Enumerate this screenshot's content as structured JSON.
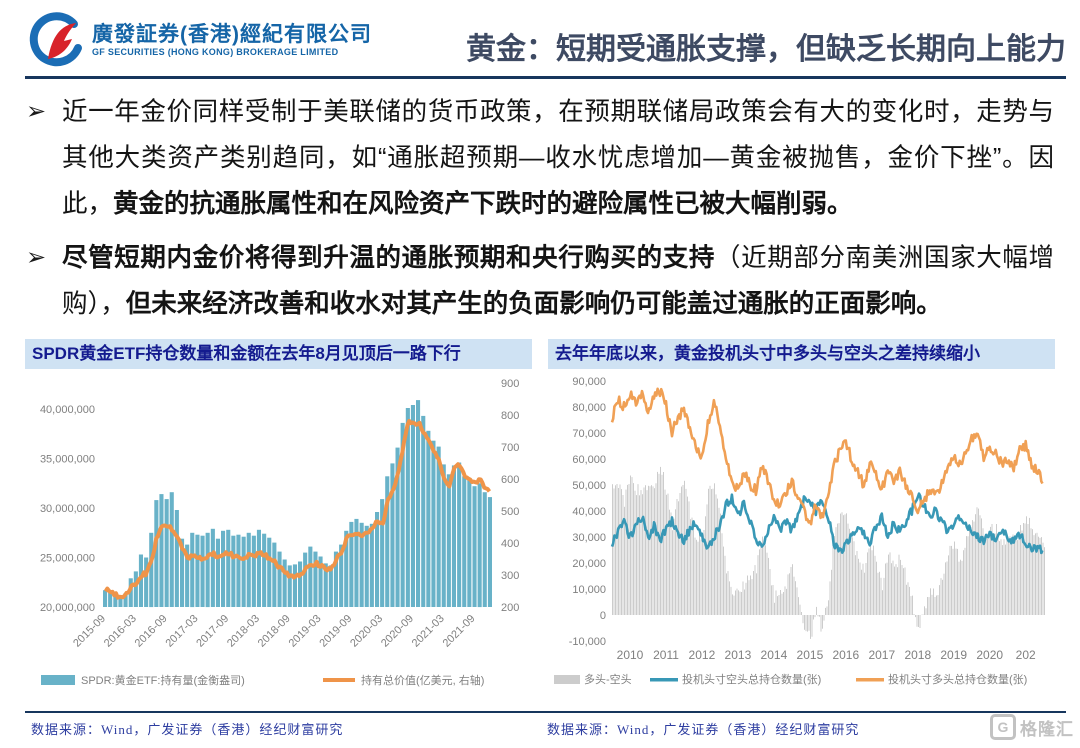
{
  "header": {
    "logo_chinese": "廣發証券(香港)經紀有限公司",
    "logo_english": "GF SECURITIES (HONG KONG) BROKERAGE LIMITED",
    "title": "黄金：短期受通胀支撑，但缺乏长期向上能力"
  },
  "bullet_marker": "➢",
  "bullets": [
    {
      "segments": [
        {
          "text": "近一年金价同样受制于美联储的货币政策，在预期联储局政策会有大的变化时，走势与其他大类资产类别趋同，如“通胀超预期—收水忧虑增加—黄金被抛售，金价下挫”。因此，",
          "bold": false
        },
        {
          "text": "黄金的抗通胀属性和在风险资产下跌时的避险属性已被大幅削弱。",
          "bold": true
        }
      ]
    },
    {
      "segments": [
        {
          "text": "尽管短期内金价将得到升温的通胀预期和央行购买的支持",
          "bold": true
        },
        {
          "text": "（近期部分南美洲国家大幅增购），",
          "bold": false
        },
        {
          "text": "但未来经济改善和收水对其产生的负面影响仍可能盖过通胀的正面影响。",
          "bold": true
        }
      ]
    }
  ],
  "footer": {
    "source_left": "数据来源：Wind，广发证券（香港）经纪财富研究",
    "source_right": "数据来源：Wind，广发证券（香港）经纪财富研究",
    "watermark": "格隆汇",
    "watermark_icon": "G"
  },
  "colors": {
    "accent_navy": "#17365d",
    "title_text": "#3e4a63",
    "chart_header_bg": "#cfe2f3",
    "chart_header_text": "#141b8f",
    "etf_bar": "#68b2c8",
    "value_line": "#ef9449",
    "net_bar": "#cccccc",
    "short_line": "#3898b6",
    "long_line": "#f0a055",
    "axis_text": "#808080",
    "source_text": "#2d3da0"
  },
  "chart_data": [
    {
      "type": "bar",
      "subtype": "combo-bar-line-dual-axis",
      "title": "SPDR黄金ETF持仓数量和金额在去年8月见顶后一路下行",
      "x_monthly_from": "2015-09",
      "x_monthly_to": "2021-12",
      "x_tick_labels": [
        "2015-09",
        "2016-03",
        "2016-09",
        "2017-03",
        "2017-09",
        "2018-03",
        "2018-09",
        "2019-03",
        "2019-09",
        "2020-03",
        "2020-09",
        "2021-03",
        "2021-09"
      ],
      "left_axis": {
        "min": 20000000,
        "max": 40000000,
        "step": 5000000
      },
      "right_axis": {
        "min": 200,
        "max": 900,
        "step": 100
      },
      "grid": false,
      "legend_position": "bottom",
      "series": [
        {
          "name": "SPDR:黄金ETF:持有量(金衡盎司)",
          "kind": "bar",
          "axis": "left",
          "unit": "million_troy_oz",
          "values": [
            21.7,
            21.6,
            21.2,
            20.9,
            21.4,
            22.9,
            23.6,
            25.3,
            25.0,
            27.5,
            30.8,
            31.4,
            30.9,
            31.6,
            29.8,
            26.9,
            26.3,
            27.5,
            27.3,
            27.2,
            27.5,
            27.9,
            26.9,
            27.7,
            27.8,
            27.2,
            27.3,
            27.1,
            27.5,
            27.2,
            27.8,
            27.4,
            27.0,
            26.5,
            25.6,
            24.8,
            24.2,
            24.3,
            24.6,
            25.5,
            26.1,
            25.6,
            25.1,
            24.4,
            24.2,
            25.6,
            26.3,
            27.7,
            28.6,
            28.9,
            28.5,
            28.2,
            28.4,
            29.6,
            30.9,
            33.2,
            34.5,
            36.1,
            38.6,
            40.1,
            40.4,
            40.9,
            39.3,
            37.8,
            36.8,
            36.2,
            34.4,
            33.4,
            34.3,
            34.6,
            33.2,
            32.8,
            32.2,
            32.5,
            31.6,
            31.1
          ]
        },
        {
          "name": "持有总价值(亿美元, 右轴)",
          "kind": "line",
          "axis": "right",
          "unit": "亿美元",
          "values": [
            255,
            250,
            238,
            230,
            238,
            262,
            275,
            300,
            305,
            345,
            420,
            455,
            450,
            445,
            420,
            382,
            350,
            362,
            355,
            352,
            360,
            368,
            355,
            365,
            368,
            358,
            355,
            352,
            365,
            362,
            368,
            362,
            352,
            340,
            322,
            308,
            295,
            298,
            302,
            318,
            330,
            338,
            328,
            315,
            318,
            350,
            368,
            415,
            428,
            432,
            422,
            430,
            448,
            468,
            455,
            530,
            565,
            615,
            700,
            785,
            770,
            778,
            742,
            718,
            690,
            655,
            605,
            580,
            640,
            645,
            612,
            602,
            585,
            598,
            572,
            558
          ]
        }
      ]
    },
    {
      "type": "line",
      "subtype": "lines-with-net-difference-bars",
      "title": "去年年底以来，黄金投机头寸中多头与空头之差持续缩小",
      "x_from_year": 2010,
      "x_step_months": 2,
      "x_tick_labels": [
        "2010",
        "2011",
        "2012",
        "2013",
        "2014",
        "2015",
        "2016",
        "2017",
        "2018",
        "2019",
        "2020",
        "202"
      ],
      "y_axis": {
        "min": -10000,
        "max": 90000,
        "step": 10000
      },
      "grid": false,
      "legend_position": "bottom",
      "series": [
        {
          "name": "多头-空头",
          "kind": "bar",
          "unit": "张",
          "derived": "long_minus_short"
        },
        {
          "name": "投机头寸空头总持仓数量(张)",
          "kind": "line",
          "unit": "张",
          "values": [
            28000,
            32000,
            36000,
            30000,
            34000,
            38000,
            30000,
            34000,
            28000,
            33000,
            36000,
            31000,
            28000,
            33000,
            36000,
            30000,
            26000,
            30000,
            34000,
            42000,
            45000,
            38000,
            43000,
            36000,
            30000,
            26000,
            32000,
            38000,
            33000,
            36000,
            32000,
            38000,
            44000,
            44000,
            40000,
            44000,
            38000,
            28000,
            24000,
            27000,
            30000,
            34000,
            32000,
            28000,
            34000,
            38000,
            31000,
            35000,
            32000,
            36000,
            40000,
            46000,
            42000,
            38000,
            40000,
            36000,
            32000,
            35000,
            38000,
            34000,
            32000,
            30000,
            28000,
            31000,
            29000,
            32000,
            30000,
            28000,
            31000,
            27000,
            25000,
            26000,
            24000
          ]
        },
        {
          "name": "投机头寸多头总持仓数量(张)",
          "kind": "line",
          "unit": "张",
          "values": [
            76000,
            83000,
            80000,
            85000,
            82000,
            86000,
            79000,
            84000,
            86000,
            81000,
            70000,
            76000,
            79000,
            72000,
            65000,
            60000,
            73000,
            82000,
            73000,
            60000,
            52000,
            48000,
            55000,
            50000,
            48000,
            58000,
            52000,
            45000,
            42000,
            47000,
            52000,
            45000,
            40000,
            35000,
            42000,
            38000,
            45000,
            58000,
            63000,
            66000,
            60000,
            55000,
            50000,
            58000,
            54000,
            48000,
            56000,
            52000,
            55000,
            50000,
            46000,
            40000,
            44000,
            48000,
            46000,
            50000,
            56000,
            62000,
            58000,
            63000,
            68000,
            70000,
            60000,
            65000,
            62000,
            58000,
            60000,
            57000,
            63000,
            65000,
            58000,
            55000,
            51000
          ]
        }
      ]
    }
  ]
}
